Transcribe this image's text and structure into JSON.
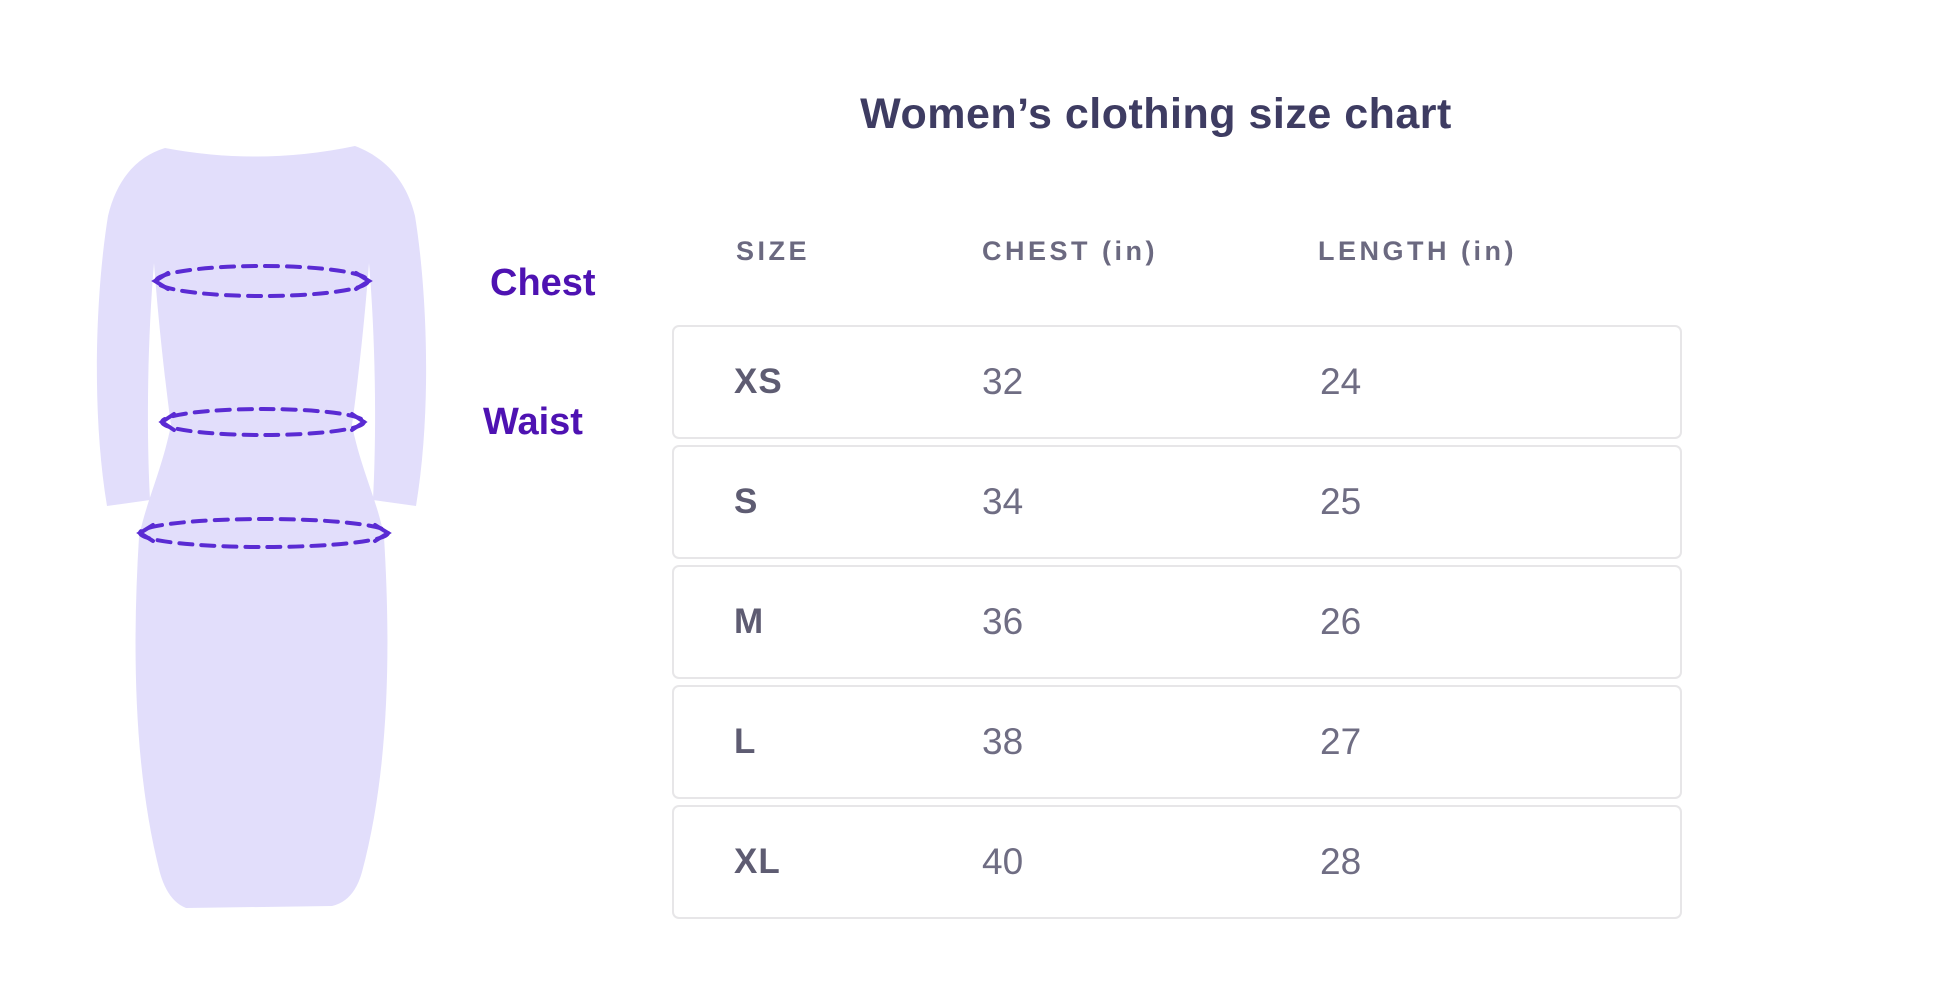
{
  "chart_data": {
    "type": "table",
    "title": "Women’s clothing size chart",
    "columns": [
      "SIZE",
      "CHEST (in)",
      "LENGTH (in)"
    ],
    "rows": [
      {
        "size": "XS",
        "chest": "32",
        "length": "24"
      },
      {
        "size": "S",
        "chest": "34",
        "length": "25"
      },
      {
        "size": "M",
        "chest": "36",
        "length": "26"
      },
      {
        "size": "L",
        "chest": "38",
        "length": "27"
      },
      {
        "size": "XL",
        "chest": "40",
        "length": "28"
      }
    ],
    "layout_hints": {
      "legend": "none",
      "grid": "row-borders-only",
      "illustration": "dress silhouette with dashed measurement ellipses at chest, waist and hip"
    }
  },
  "figure": {
    "labels": {
      "chest": "Chest",
      "waist": "Waist"
    },
    "measurement_lines": [
      "chest-line",
      "waist-line",
      "hip-line"
    ],
    "colors": {
      "dress_fill": "#e2defb",
      "dash_line": "#5a2bd3",
      "label_text": "#4e12b2"
    }
  },
  "styles": {
    "background": "#ffffff",
    "title_color": "#3e3c62",
    "header_color": "#6b6980",
    "size_text_color": "#5e5c72",
    "value_text_color": "#6f6d83",
    "row_border_color": "#e7e6e8"
  }
}
